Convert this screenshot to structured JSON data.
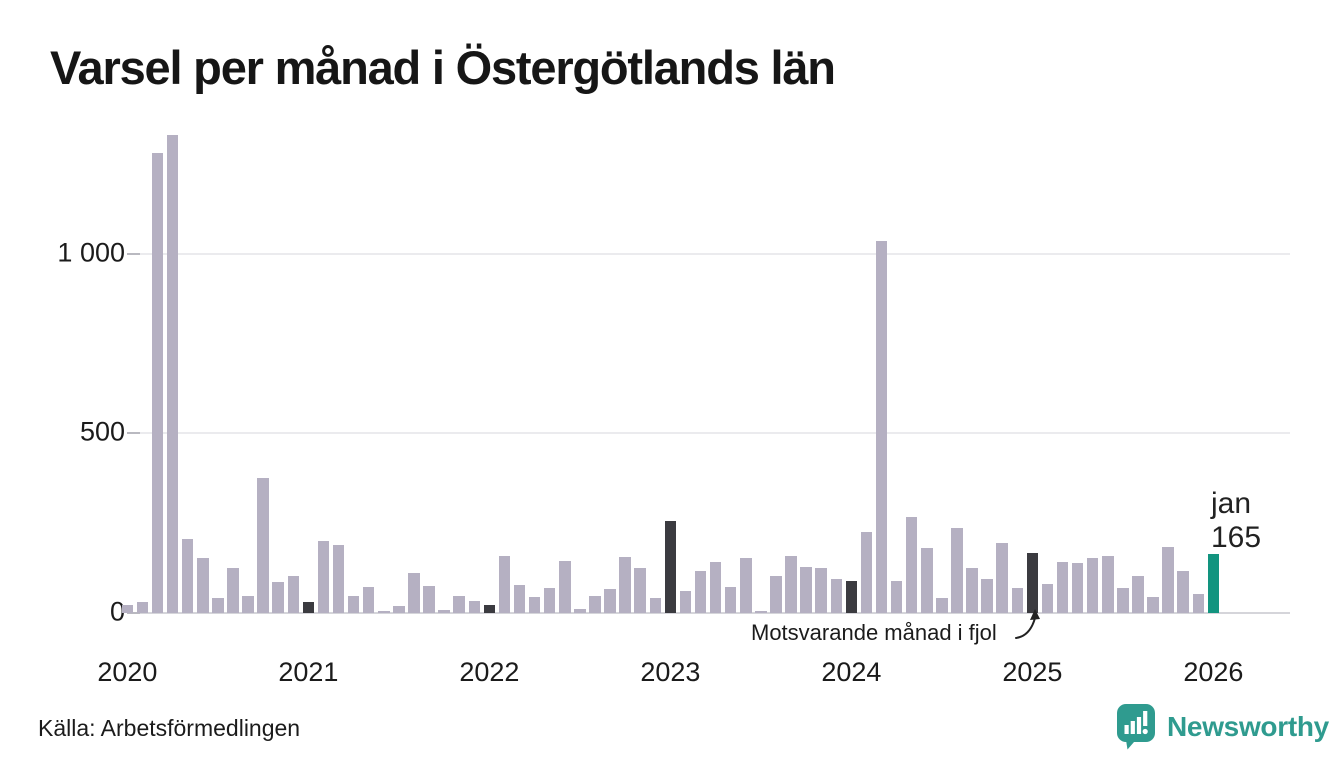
{
  "title": "Varsel per månad i Östergötlands län",
  "source": "Källa: Arbetsförmedlingen",
  "logo": {
    "name": "Newsworthy",
    "icon": "newsworthy-speech-bubble-barchart-icon"
  },
  "annotation": {
    "text": "Motsvarande månad i fjol",
    "points_to_month": "2025-01"
  },
  "current_label": {
    "month_text": "jan",
    "value_text": "165"
  },
  "colors": {
    "bar": "#b5b0c2",
    "bar_last_year_month": "#3b3b40",
    "bar_current": "#12947f",
    "grid": "#ebebee",
    "axis": "#d5d5da",
    "text": "#1b1b1b",
    "logo_teal": "#2f9b8f"
  },
  "chart_data": {
    "type": "bar",
    "title": "Varsel per månad i Östergötlands län",
    "xlabel": "",
    "ylabel": "",
    "ylim": [
      0,
      1400
    ],
    "grid": "horizontal",
    "legend_position": "none",
    "y_ticks": [
      {
        "value": 0,
        "label": "0"
      },
      {
        "value": 500,
        "label": "500"
      },
      {
        "value": 1000,
        "label": "1 000"
      }
    ],
    "x_ticks": [
      {
        "month": "2020-01",
        "label": "2020"
      },
      {
        "month": "2021-01",
        "label": "2021"
      },
      {
        "month": "2022-01",
        "label": "2022"
      },
      {
        "month": "2023-01",
        "label": "2023"
      },
      {
        "month": "2024-01",
        "label": "2024"
      },
      {
        "month": "2025-01",
        "label": "2025"
      },
      {
        "month": "2026-01",
        "label": "2026"
      }
    ],
    "highlight_months": [
      "2021-01",
      "2022-01",
      "2023-01",
      "2024-01",
      "2025-01"
    ],
    "current": {
      "month": "2026-01",
      "value": 165,
      "label": "jan"
    },
    "months": [
      "2020-01",
      "2020-02",
      "2020-03",
      "2020-04",
      "2020-05",
      "2020-06",
      "2020-07",
      "2020-08",
      "2020-09",
      "2020-10",
      "2020-11",
      "2020-12",
      "2021-01",
      "2021-02",
      "2021-03",
      "2021-04",
      "2021-05",
      "2021-06",
      "2021-07",
      "2021-08",
      "2021-09",
      "2021-10",
      "2021-11",
      "2021-12",
      "2022-01",
      "2022-02",
      "2022-03",
      "2022-04",
      "2022-05",
      "2022-06",
      "2022-07",
      "2022-08",
      "2022-09",
      "2022-10",
      "2022-11",
      "2022-12",
      "2023-01",
      "2023-02",
      "2023-03",
      "2023-04",
      "2023-05",
      "2023-06",
      "2023-07",
      "2023-08",
      "2023-09",
      "2023-10",
      "2023-11",
      "2023-12",
      "2024-01",
      "2024-02",
      "2024-03",
      "2024-04",
      "2024-05",
      "2024-06",
      "2024-07",
      "2024-08",
      "2024-09",
      "2024-10",
      "2024-11",
      "2024-12",
      "2025-01",
      "2025-02",
      "2025-03",
      "2025-04",
      "2025-05",
      "2025-06",
      "2025-07",
      "2025-08",
      "2025-09",
      "2025-10",
      "2025-11",
      "2025-12",
      "2026-01"
    ],
    "values": [
      22,
      30,
      1280,
      1330,
      206,
      153,
      42,
      125,
      48,
      376,
      87,
      103,
      31,
      200,
      188,
      48,
      73,
      6,
      20,
      112,
      76,
      8,
      48,
      34,
      23,
      158,
      79,
      45,
      70,
      146,
      11,
      48,
      67,
      155,
      126,
      42,
      256,
      62,
      118,
      143,
      73,
      152,
      6,
      104,
      158,
      129,
      126,
      96,
      90,
      225,
      1035,
      90,
      267,
      180,
      42,
      236,
      124,
      96,
      194,
      70,
      166,
      82,
      143,
      140,
      154,
      160,
      70,
      104,
      45,
      185,
      118,
      53,
      165
    ]
  }
}
